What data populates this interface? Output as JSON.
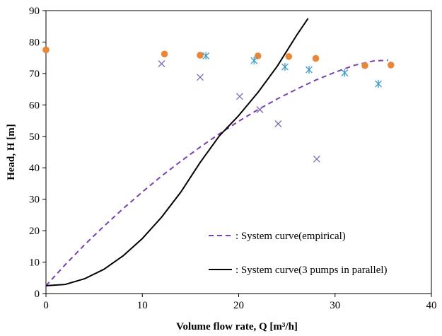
{
  "chart_data": {
    "type": "scatter",
    "title": "",
    "xlabel": "Volume  flow rate, Q [m³/h]",
    "ylabel": "Head, H [m]",
    "xlim": [
      0,
      40
    ],
    "ylim": [
      0,
      90
    ],
    "xticks": [
      "0",
      "10",
      "20",
      "30",
      "40"
    ],
    "yticks": [
      "0",
      "10",
      "20",
      "30",
      "40",
      "50",
      "60",
      "70",
      "80",
      "90"
    ],
    "grid": false,
    "legend_position": "bottom-right",
    "series": [
      {
        "kind": "line",
        "style": "dashed",
        "color": "#7a3fb5",
        "name": ": System curve(empirical)",
        "x": [
          0,
          2,
          4,
          6,
          8,
          10,
          12,
          14,
          16,
          18,
          20,
          22,
          24,
          26,
          28,
          30,
          32,
          34,
          35.5
        ],
        "y": [
          2.5,
          9.2,
          15.5,
          21.4,
          27.0,
          32.3,
          37.4,
          42.1,
          46.6,
          50.8,
          54.8,
          58.5,
          61.9,
          65.0,
          67.9,
          70.4,
          72.6,
          74.0,
          74.2
        ]
      },
      {
        "kind": "line",
        "style": "solid",
        "color": "#000000",
        "name": ": System curve(3 pumps in parallel)",
        "x": [
          0,
          2,
          4,
          6,
          8,
          10,
          12,
          14,
          16,
          18,
          20,
          22,
          24,
          26,
          27.2
        ],
        "y": [
          2.5,
          2.9,
          4.7,
          7.7,
          12.0,
          17.5,
          24.3,
          32.3,
          41.7,
          50.2,
          56.6,
          64.0,
          72.3,
          82.1,
          87.5
        ]
      },
      {
        "kind": "markers",
        "marker": "circle",
        "color": "#e8873a",
        "x": [
          0,
          12.3,
          16,
          22,
          25.2,
          28,
          33.1,
          35.8
        ],
        "y": [
          77.5,
          76.2,
          75.8,
          75.6,
          75.4,
          74.8,
          72.5,
          72.7
        ]
      },
      {
        "kind": "markers",
        "marker": "asterisk",
        "color": "#3a9ac8",
        "x": [
          16.6,
          21.6,
          24.8,
          27.3,
          31.0,
          34.5
        ],
        "y": [
          75.6,
          74.1,
          72.1,
          71.2,
          70.2,
          66.7
        ]
      },
      {
        "kind": "markers",
        "marker": "x",
        "color": "#7a6ab8",
        "x": [
          12,
          16,
          20.1,
          22.2,
          24.1,
          28.1
        ],
        "y": [
          73.1,
          68.8,
          62.7,
          58.5,
          54.0,
          42.8
        ]
      }
    ]
  }
}
